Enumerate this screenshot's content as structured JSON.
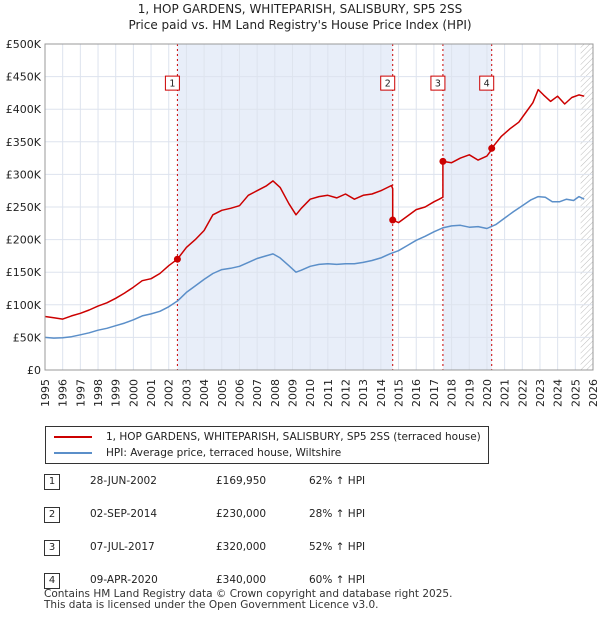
{
  "chart_data": {
    "type": "line",
    "title": "1, HOP GARDENS, WHITEPARISH, SALISBURY, SP5 2SS",
    "subtitle": "Price paid vs. HM Land Registry's House Price Index (HPI)",
    "xlim": [
      1995,
      2026
    ],
    "ylim": [
      0,
      500000
    ],
    "x_ticks": [
      "1995",
      "1996",
      "1997",
      "1998",
      "1999",
      "2000",
      "2001",
      "2002",
      "2003",
      "2004",
      "2005",
      "2006",
      "2007",
      "2008",
      "2009",
      "2010",
      "2011",
      "2012",
      "2013",
      "2014",
      "2015",
      "2016",
      "2017",
      "2018",
      "2019",
      "2020",
      "2021",
      "2022",
      "2023",
      "2024",
      "2025",
      "2026"
    ],
    "y_ticks": [
      {
        "v": 0,
        "label": "£0"
      },
      {
        "v": 50000,
        "label": "£50K"
      },
      {
        "v": 100000,
        "label": "£100K"
      },
      {
        "v": 150000,
        "label": "£150K"
      },
      {
        "v": 200000,
        "label": "£200K"
      },
      {
        "v": 250000,
        "label": "£250K"
      },
      {
        "v": 300000,
        "label": "£300K"
      },
      {
        "v": 350000,
        "label": "£350K"
      },
      {
        "v": 400000,
        "label": "£400K"
      },
      {
        "v": 450000,
        "label": "£450K"
      },
      {
        "v": 500000,
        "label": "£500K"
      }
    ],
    "grid": true,
    "series": [
      {
        "name": "1, HOP GARDENS, WHITEPARISH, SALISBURY, SP5 2SS (terraced house)",
        "color": "#cc0000",
        "x": [
          1995.0,
          1995.5,
          1996.0,
          1996.5,
          1997.0,
          1997.5,
          1998.0,
          1998.5,
          1999.0,
          1999.5,
          2000.0,
          2000.5,
          2001.0,
          2001.5,
          2002.0,
          2002.49,
          2002.49,
          2003.0,
          2003.5,
          2004.0,
          2004.5,
          2005.0,
          2005.5,
          2006.0,
          2006.5,
          2007.0,
          2007.5,
          2007.9,
          2008.3,
          2008.8,
          2009.2,
          2009.5,
          2010.0,
          2010.5,
          2011.0,
          2011.5,
          2012.0,
          2012.5,
          2013.0,
          2013.5,
          2014.0,
          2014.6,
          2014.67,
          2014.67,
          2015.0,
          2015.5,
          2016.0,
          2016.5,
          2017.0,
          2017.3,
          2017.51,
          2017.51,
          2018.0,
          2018.5,
          2019.0,
          2019.5,
          2020.0,
          2020.27,
          2020.27,
          2020.8,
          2021.3,
          2021.8,
          2022.2,
          2022.6,
          2022.9,
          2023.2,
          2023.6,
          2024.0,
          2024.4,
          2024.8,
          2025.2,
          2025.5
        ],
        "values": [
          82000,
          80000,
          78000,
          83000,
          87000,
          92000,
          98000,
          103000,
          110000,
          118000,
          127000,
          137000,
          140000,
          148000,
          160000,
          169950,
          169950,
          188000,
          200000,
          214000,
          238000,
          245000,
          248000,
          252000,
          268000,
          275000,
          282000,
          290000,
          280000,
          255000,
          238000,
          248000,
          262000,
          266000,
          268000,
          264000,
          270000,
          262000,
          268000,
          270000,
          275000,
          283000,
          278000,
          230000,
          226000,
          236000,
          246000,
          250000,
          258000,
          262000,
          265000,
          320000,
          318000,
          325000,
          330000,
          322000,
          328000,
          338000,
          340000,
          358000,
          370000,
          380000,
          395000,
          410000,
          430000,
          422000,
          412000,
          420000,
          408000,
          418000,
          422000,
          420000
        ]
      },
      {
        "name": "HPI: Average price, terraced house, Wiltshire",
        "color": "#5b8fc9",
        "x": [
          1995.0,
          1995.5,
          1996.0,
          1996.5,
          1997.0,
          1997.5,
          1998.0,
          1998.5,
          1999.0,
          1999.5,
          2000.0,
          2000.5,
          2001.0,
          2001.5,
          2002.0,
          2002.5,
          2003.0,
          2003.5,
          2004.0,
          2004.5,
          2005.0,
          2005.5,
          2006.0,
          2006.5,
          2007.0,
          2007.5,
          2007.9,
          2008.3,
          2008.8,
          2009.2,
          2009.5,
          2010.0,
          2010.5,
          2011.0,
          2011.5,
          2012.0,
          2012.5,
          2013.0,
          2013.5,
          2014.0,
          2014.5,
          2015.0,
          2015.5,
          2016.0,
          2016.5,
          2017.0,
          2017.5,
          2018.0,
          2018.5,
          2019.0,
          2019.5,
          2020.0,
          2020.5,
          2021.0,
          2021.5,
          2022.0,
          2022.5,
          2022.9,
          2023.3,
          2023.7,
          2024.1,
          2024.5,
          2024.9,
          2025.2,
          2025.5
        ],
        "values": [
          50000,
          49000,
          49500,
          51000,
          54000,
          57000,
          61000,
          64000,
          68000,
          72000,
          77000,
          83000,
          86000,
          90000,
          97000,
          106000,
          119000,
          129000,
          139000,
          148000,
          154000,
          156000,
          159000,
          165000,
          171000,
          175000,
          178000,
          172000,
          160000,
          150000,
          153000,
          159000,
          162000,
          163000,
          162000,
          163000,
          163000,
          165000,
          168000,
          172000,
          178000,
          183000,
          191000,
          199000,
          205000,
          212000,
          218000,
          221000,
          222000,
          219000,
          220000,
          217000,
          223000,
          233000,
          243000,
          252000,
          261000,
          266000,
          265000,
          258000,
          258000,
          262000,
          260000,
          266000,
          262000
        ]
      }
    ],
    "sales": [
      {
        "n": "1",
        "x": 2002.49,
        "value": 169950
      },
      {
        "n": "2",
        "x": 2014.67,
        "value": 230000
      },
      {
        "n": "3",
        "x": 2017.51,
        "value": 320000
      },
      {
        "n": "4",
        "x": 2020.27,
        "value": 340000
      }
    ],
    "marker_label_value": 440000
  },
  "legend": {
    "property": "1, HOP GARDENS, WHITEPARISH, SALISBURY, SP5 2SS (terraced house)",
    "hpi": "HPI: Average price, terraced house, Wiltshire"
  },
  "sales_table": [
    {
      "n": "1",
      "date": "28-JUN-2002",
      "price": "£169,950",
      "hpi": "62% ↑ HPI"
    },
    {
      "n": "2",
      "date": "02-SEP-2014",
      "price": "£230,000",
      "hpi": "28% ↑ HPI"
    },
    {
      "n": "3",
      "date": "07-JUL-2017",
      "price": "£320,000",
      "hpi": "52% ↑ HPI"
    },
    {
      "n": "4",
      "date": "09-APR-2020",
      "price": "£340,000",
      "hpi": "60% ↑ HPI"
    }
  ],
  "footer": {
    "line1": "Contains HM Land Registry data © Crown copyright and database right 2025.",
    "line2": "This data is licensed under the Open Government Licence v3.0."
  },
  "colors": {
    "property": "#cc0000",
    "hpi": "#5b8fc9",
    "shade": "#e8eef9",
    "grid": "#dde3ee",
    "vline": "#cc0000"
  }
}
